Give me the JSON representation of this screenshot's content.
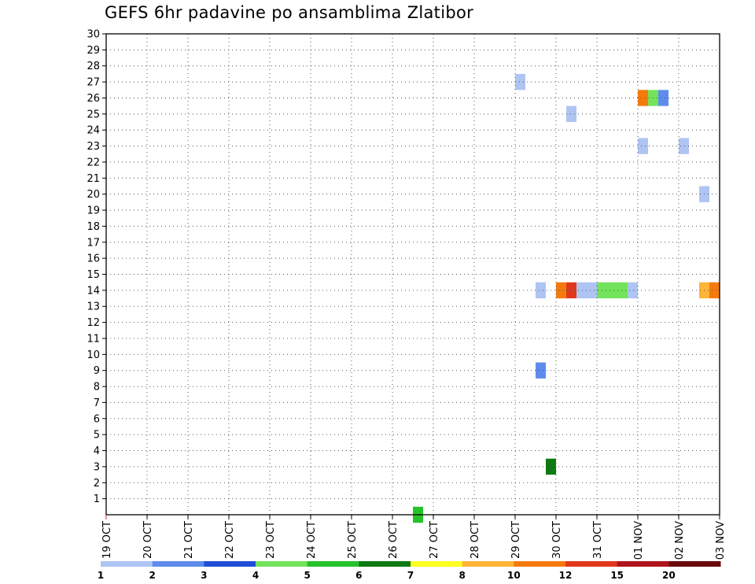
{
  "chart_data": {
    "type": "heatmap",
    "title": "GEFS 6hr padavine po ansamblima Zlatibor",
    "xlabel": "",
    "ylabel": "",
    "x_tick_labels": [
      "19 OCT",
      "20 OCT",
      "21 OCT",
      "22 OCT",
      "23 OCT",
      "24 OCT",
      "25 OCT",
      "26 OCT",
      "27 OCT",
      "28 OCT",
      "29 OCT",
      "30 OCT",
      "31 OCT",
      "01 NOV",
      "02 NOV",
      "03 NOV"
    ],
    "xlim_days": [
      0,
      15
    ],
    "y_tick_labels": [
      1,
      2,
      3,
      4,
      5,
      6,
      7,
      8,
      9,
      10,
      11,
      12,
      13,
      14,
      15,
      16,
      17,
      18,
      19,
      20,
      21,
      22,
      23,
      24,
      25,
      26,
      27,
      28,
      29,
      30
    ],
    "ylim": [
      0,
      30
    ],
    "grid": true,
    "colorbar": {
      "labels": [
        "1",
        "2",
        "3",
        "4",
        "5",
        "6",
        "7",
        "8",
        "10",
        "12",
        "15",
        "20"
      ],
      "colors": [
        "#aec4f3",
        "#5f8cec",
        "#1f4fd6",
        "#72e35a",
        "#26c22a",
        "#0d7a12",
        "#ffff21",
        "#ffb437",
        "#f47a0e",
        "#e1381c",
        "#b0131c",
        "#6b0a0b"
      ]
    },
    "cells": [
      {
        "day": 7.625,
        "member": 0,
        "value": 5
      },
      {
        "day": 10.125,
        "member": 27,
        "value": 1
      },
      {
        "day": 10.625,
        "member": 14,
        "value": 1
      },
      {
        "day": 10.625,
        "member": 9,
        "value": 2
      },
      {
        "day": 10.875,
        "member": 3,
        "value": 6
      },
      {
        "day": 11.125,
        "member": 14,
        "value": 10
      },
      {
        "day": 11.375,
        "member": 14,
        "value": 12
      },
      {
        "day": 11.375,
        "member": 25,
        "value": 1
      },
      {
        "day": 11.625,
        "member": 14,
        "value": 1
      },
      {
        "day": 11.875,
        "member": 14,
        "value": 1
      },
      {
        "day": 12.125,
        "member": 14,
        "value": 4
      },
      {
        "day": 12.375,
        "member": 14,
        "value": 4
      },
      {
        "day": 12.625,
        "member": 14,
        "value": 4
      },
      {
        "day": 12.875,
        "member": 14,
        "value": 1
      },
      {
        "day": 13.125,
        "member": 26,
        "value": 10
      },
      {
        "day": 13.125,
        "member": 23,
        "value": 1
      },
      {
        "day": 13.375,
        "member": 26,
        "value": 4
      },
      {
        "day": 13.625,
        "member": 26,
        "value": 2
      },
      {
        "day": 14.125,
        "member": 23,
        "value": 1
      },
      {
        "day": 14.625,
        "member": 20,
        "value": 1
      },
      {
        "day": 14.625,
        "member": 14,
        "value": 8
      },
      {
        "day": 14.875,
        "member": 14,
        "value": 10
      }
    ]
  }
}
